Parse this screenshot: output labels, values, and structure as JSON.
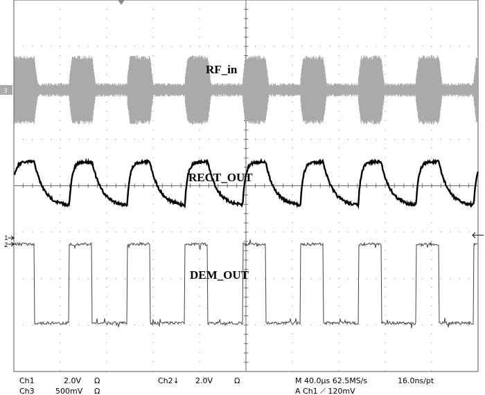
{
  "labels": {
    "rf": "RF_in",
    "rect": "RECT_OUT",
    "dem": "DEM_OUT"
  },
  "markers": {
    "ch3": "3",
    "ch1": "1",
    "ch2": "2"
  },
  "status": {
    "row1": {
      "ch1": "Ch1",
      "ch1_scale": "2.0V",
      "ch1_imp": "Ω",
      "ch2": "Ch2↓",
      "ch2_scale": "2.0V",
      "ch2_imp": "Ω",
      "timebase": "M 40.0µs 62.5MS/s",
      "resolution": "16.0ns/pt"
    },
    "row2": {
      "ch3": "Ch3",
      "ch3_scale": "500mV",
      "ch3_imp": "Ω",
      "trigger": "A  Ch1  ⟋  120mV"
    }
  }
}
